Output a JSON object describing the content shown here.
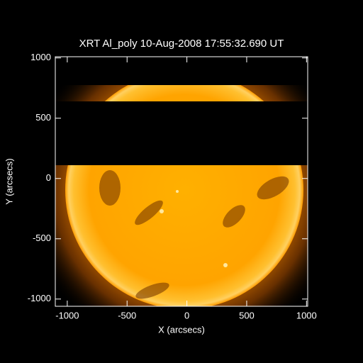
{
  "chart_data": {
    "type": "image",
    "title": "XRT Al_poly 10-Aug-2008 17:55:32.690 UT",
    "xlabel": "X (arcsecs)",
    "ylabel": "Y (arcsecs)",
    "xlim": [
      -1100,
      1010
    ],
    "ylim": [
      -1060,
      1010
    ],
    "xticks": [
      -1000,
      -500,
      0,
      500,
      1000
    ],
    "yticks": [
      -1000,
      -500,
      0,
      500,
      1000
    ]
  }
}
